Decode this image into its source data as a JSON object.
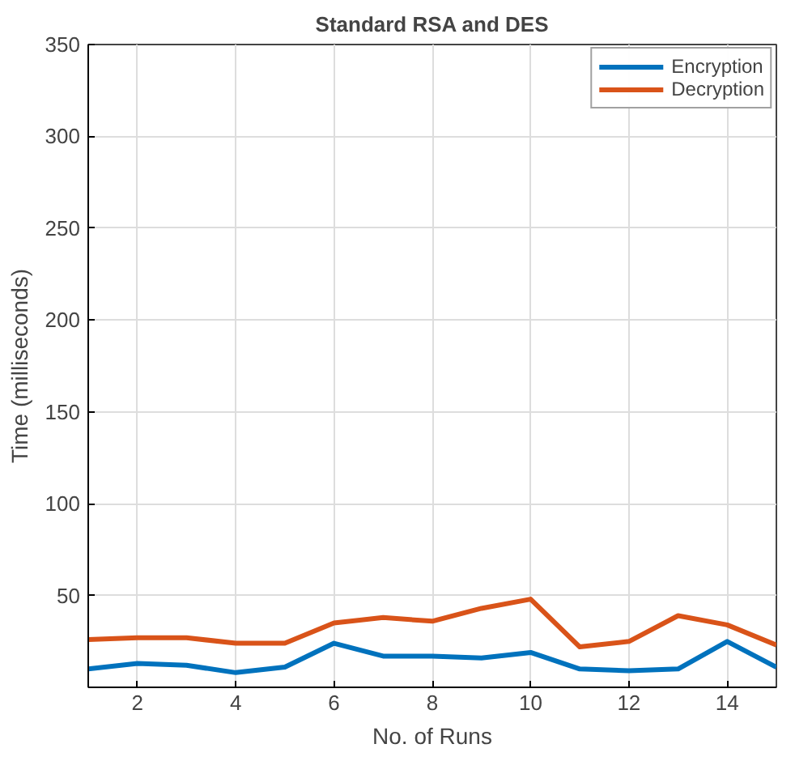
{
  "chart_data": {
    "type": "line",
    "title": "Standard RSA and DES",
    "xlabel": "No. of Runs",
    "ylabel": "Time (milliseconds)",
    "x": [
      1,
      2,
      3,
      4,
      5,
      6,
      7,
      8,
      9,
      10,
      11,
      12,
      13,
      14,
      15
    ],
    "series": [
      {
        "name": "Encryption",
        "color": "#0072bd",
        "values": [
          10,
          13,
          12,
          8,
          11,
          24,
          17,
          17,
          16,
          19,
          10,
          9,
          10,
          25,
          11
        ]
      },
      {
        "name": "Decryption",
        "color": "#d95319",
        "values": [
          26,
          27,
          27,
          24,
          24,
          35,
          38,
          36,
          43,
          48,
          22,
          25,
          39,
          34,
          23
        ]
      }
    ],
    "xlim": [
      1,
      15
    ],
    "xticks": [
      2,
      4,
      6,
      8,
      10,
      12,
      14
    ],
    "ylim": [
      0,
      350
    ],
    "yticks": [
      50,
      100,
      150,
      200,
      250,
      300,
      350
    ],
    "grid": true,
    "legend": "top right",
    "marker": "none",
    "line_style": "solid"
  }
}
